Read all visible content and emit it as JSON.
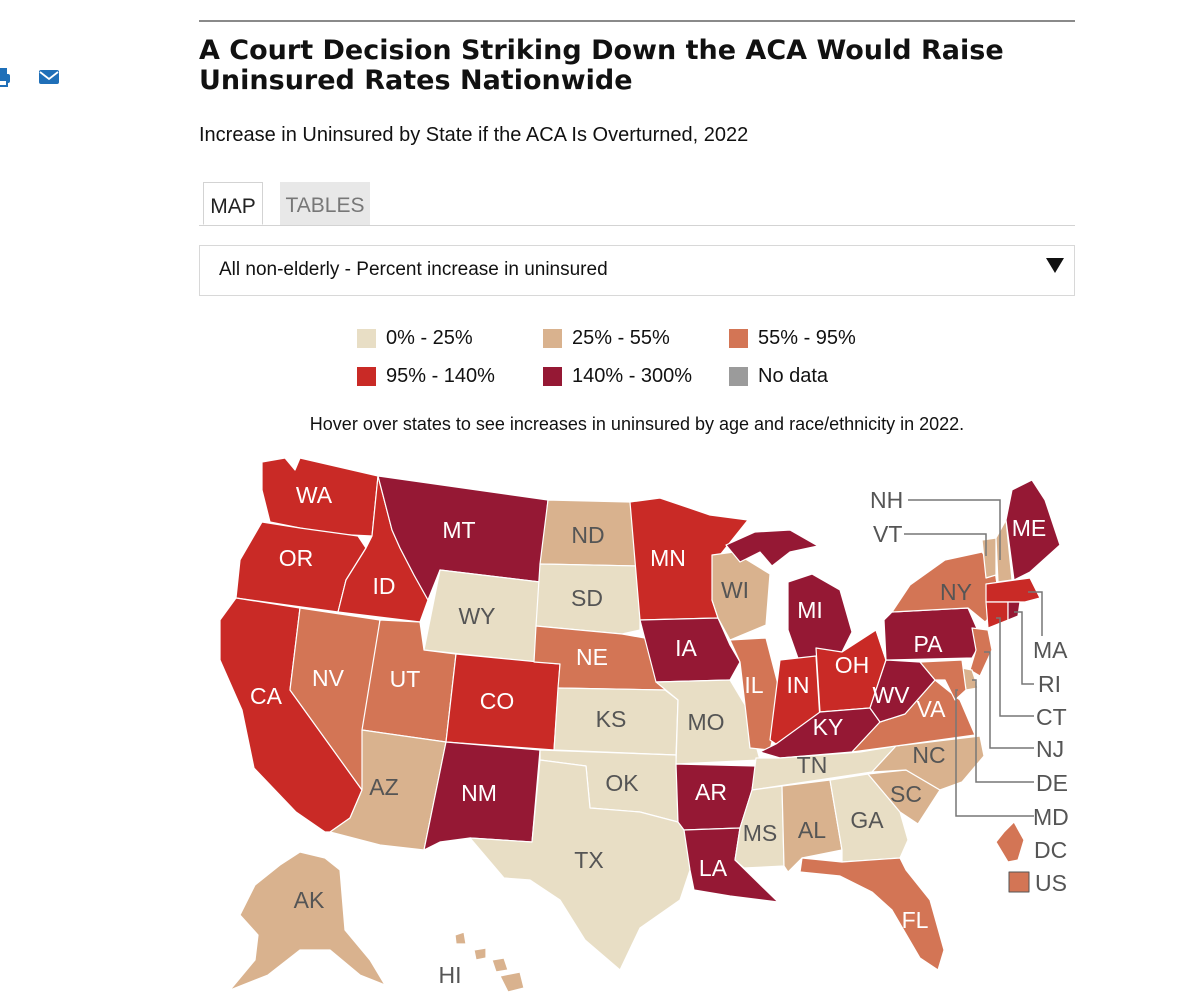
{
  "title": "A Court Decision Striking Down the ACA Would Raise Uninsured Rates Nationwide",
  "subtitle": "Increase in Uninsured by State if the ACA Is Overturned, 2022",
  "share": {
    "print_icon": "printer-icon",
    "email_icon": "envelope-icon"
  },
  "tabs": [
    {
      "label": "MAP",
      "active": true
    },
    {
      "label": "TABLES",
      "active": false
    }
  ],
  "select": {
    "value": "All non-elderly - Percent increase in uninsured"
  },
  "legend": [
    {
      "label": "0% - 25%",
      "color": "#e8dec5"
    },
    {
      "label": "25% - 55%",
      "color": "#d9b28e"
    },
    {
      "label": "55% - 95%",
      "color": "#d37555"
    },
    {
      "label": "95% - 140%",
      "color": "#c92a26"
    },
    {
      "label": "140% - 300%",
      "color": "#951834"
    },
    {
      "label": "No data",
      "color": "#9b9b9b"
    }
  ],
  "hint": "Hover over states to see increases in uninsured by age and race/ethnicity in 2022.",
  "map": {
    "states": {
      "WA": {
        "label": "WA",
        "bin": 3
      },
      "OR": {
        "label": "OR",
        "bin": 3
      },
      "CA": {
        "label": "CA",
        "bin": 3
      },
      "ID": {
        "label": "ID",
        "bin": 3
      },
      "NV": {
        "label": "NV",
        "bin": 2
      },
      "MT": {
        "label": "MT",
        "bin": 4
      },
      "WY": {
        "label": "WY",
        "bin": 0
      },
      "UT": {
        "label": "UT",
        "bin": 2
      },
      "AZ": {
        "label": "AZ",
        "bin": 1
      },
      "CO": {
        "label": "CO",
        "bin": 3
      },
      "NM": {
        "label": "NM",
        "bin": 4
      },
      "ND": {
        "label": "ND",
        "bin": 1
      },
      "SD": {
        "label": "SD",
        "bin": 0
      },
      "NE": {
        "label": "NE",
        "bin": 2
      },
      "KS": {
        "label": "KS",
        "bin": 0
      },
      "OK": {
        "label": "OK",
        "bin": 0
      },
      "TX": {
        "label": "TX",
        "bin": 0
      },
      "MN": {
        "label": "MN",
        "bin": 3
      },
      "IA": {
        "label": "IA",
        "bin": 4
      },
      "MO": {
        "label": "MO",
        "bin": 0
      },
      "AR": {
        "label": "AR",
        "bin": 4
      },
      "LA": {
        "label": "LA",
        "bin": 4
      },
      "WI": {
        "label": "WI",
        "bin": 1
      },
      "IL": {
        "label": "IL",
        "bin": 2
      },
      "MI": {
        "label": "MI",
        "bin": 4
      },
      "IN": {
        "label": "IN",
        "bin": 3
      },
      "OH": {
        "label": "OH",
        "bin": 3
      },
      "KY": {
        "label": "KY",
        "bin": 4
      },
      "TN": {
        "label": "TN",
        "bin": 0
      },
      "MS": {
        "label": "MS",
        "bin": 0
      },
      "AL": {
        "label": "AL",
        "bin": 1
      },
      "GA": {
        "label": "GA",
        "bin": 0
      },
      "FL": {
        "label": "FL",
        "bin": 2
      },
      "SC": {
        "label": "SC",
        "bin": 1
      },
      "NC": {
        "label": "NC",
        "bin": 1
      },
      "VA": {
        "label": "VA",
        "bin": 2
      },
      "WV": {
        "label": "WV",
        "bin": 4
      },
      "PA": {
        "label": "PA",
        "bin": 4
      },
      "NY": {
        "label": "NY",
        "bin": 2
      },
      "ME": {
        "label": "ME",
        "bin": 4
      },
      "AK": {
        "label": "AK",
        "bin": 1
      },
      "HI": {
        "label": "HI",
        "bin": 1
      },
      "NH": {
        "label": "NH",
        "bin": 1
      },
      "VT": {
        "label": "VT",
        "bin": 1
      },
      "MA": {
        "label": "MA",
        "bin": 3
      },
      "RI": {
        "label": "RI",
        "bin": 4
      },
      "CT": {
        "label": "CT",
        "bin": 3
      },
      "NJ": {
        "label": "NJ",
        "bin": 2
      },
      "DE": {
        "label": "DE",
        "bin": 1
      },
      "MD": {
        "label": "MD",
        "bin": 2
      },
      "DC": {
        "label": "DC",
        "bin": 2
      },
      "US": {
        "label": "US",
        "bin": 2
      }
    }
  }
}
